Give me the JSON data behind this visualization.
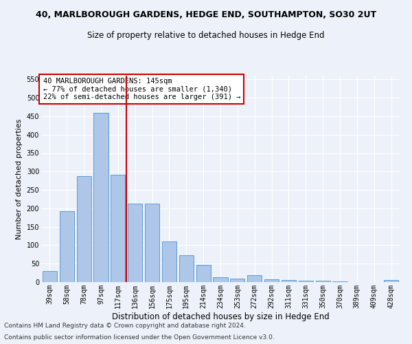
{
  "title1": "40, MARLBOROUGH GARDENS, HEDGE END, SOUTHAMPTON, SO30 2UT",
  "title2": "Size of property relative to detached houses in Hedge End",
  "xlabel": "Distribution of detached houses by size in Hedge End",
  "ylabel": "Number of detached properties",
  "categories": [
    "39sqm",
    "58sqm",
    "78sqm",
    "97sqm",
    "117sqm",
    "136sqm",
    "156sqm",
    "175sqm",
    "195sqm",
    "214sqm",
    "234sqm",
    "253sqm",
    "272sqm",
    "292sqm",
    "311sqm",
    "331sqm",
    "350sqm",
    "370sqm",
    "389sqm",
    "409sqm",
    "428sqm"
  ],
  "values": [
    30,
    192,
    288,
    460,
    292,
    213,
    213,
    110,
    73,
    47,
    13,
    10,
    18,
    8,
    6,
    4,
    3,
    2,
    0,
    0,
    5
  ],
  "bar_color": "#aec6e8",
  "bar_edge_color": "#5b9bd5",
  "vline_color": "#cc0000",
  "annotation_text": "40 MARLBOROUGH GARDENS: 145sqm\n← 77% of detached houses are smaller (1,340)\n22% of semi-detached houses are larger (391) →",
  "annotation_box_color": "#ffffff",
  "annotation_box_edge": "#cc0000",
  "ylim": [
    0,
    560
  ],
  "yticks": [
    0,
    50,
    100,
    150,
    200,
    250,
    300,
    350,
    400,
    450,
    500,
    550
  ],
  "footer1": "Contains HM Land Registry data © Crown copyright and database right 2024.",
  "footer2": "Contains public sector information licensed under the Open Government Licence v3.0.",
  "bg_color": "#edf2fa",
  "grid_color": "#ffffff",
  "title1_fontsize": 9,
  "title2_fontsize": 8.5,
  "xlabel_fontsize": 8.5,
  "ylabel_fontsize": 8,
  "tick_fontsize": 7,
  "annotation_fontsize": 7.5,
  "footer_fontsize": 6.5
}
